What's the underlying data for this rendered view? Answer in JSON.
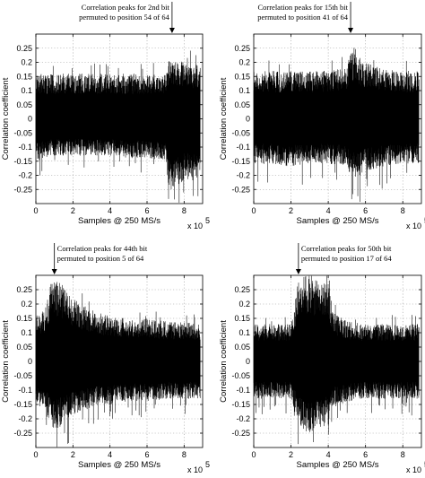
{
  "chart_data": [
    {
      "type": "line",
      "annotation": [
        "Correlation peaks for 2nd bit",
        "permuted to position 54 of 64"
      ],
      "xlabel": "Samples @ 250 MS/s",
      "ylabel": "Correlation coefficient",
      "x_multiplier": "x 10",
      "x_exponent": "5",
      "xlim": [
        0,
        9
      ],
      "ylim": [
        -0.3,
        0.3
      ],
      "xticks": [
        "0",
        "2",
        "4",
        "6",
        "8"
      ],
      "yticks": [
        "0.25",
        "0.2",
        "0.15",
        "0.1",
        "0.05",
        "0",
        "-0.05",
        "-0.1",
        "-0.15",
        "-0.2",
        "-0.25"
      ],
      "grid": true,
      "series": [
        {
          "x": [
            0,
            1,
            2,
            3,
            4,
            5,
            6,
            7,
            7.2,
            7.4,
            8,
            8.9
          ],
          "y": [
            0.16,
            0.16,
            0.16,
            0.16,
            0.16,
            0.16,
            0.16,
            0.16,
            0.22,
            0.22,
            0.2,
            0.19
          ]
        },
        {
          "x": [
            0,
            1,
            2,
            3,
            4,
            5,
            6,
            7,
            7.2,
            7.4,
            8,
            8.9
          ],
          "y": [
            -0.15,
            -0.13,
            -0.13,
            -0.13,
            -0.13,
            -0.14,
            -0.14,
            -0.15,
            -0.26,
            -0.25,
            -0.22,
            -0.22
          ]
        }
      ],
      "peak_x": 7.35
    },
    {
      "type": "line",
      "annotation": [
        "Correlation peaks for 15th bit",
        "permuted to position 41 of 64"
      ],
      "xlabel": "Samples @ 250 MS/s",
      "ylabel": "Correlation coefficient",
      "x_multiplier": "x 10",
      "x_exponent": "5",
      "xlim": [
        0,
        9
      ],
      "ylim": [
        -0.3,
        0.3
      ],
      "xticks": [
        "0",
        "2",
        "4",
        "6",
        "8"
      ],
      "yticks": [
        "0.25",
        "0.2",
        "0.15",
        "0.1",
        "0.05",
        "0",
        "-0.05",
        "-0.1",
        "-0.15",
        "-0.2",
        "-0.25"
      ],
      "grid": true,
      "series": [
        {
          "x": [
            0,
            1,
            2,
            3,
            4,
            5,
            5.2,
            5.6,
            6,
            7,
            8,
            8.9
          ],
          "y": [
            0.17,
            0.17,
            0.17,
            0.17,
            0.17,
            0.18,
            0.25,
            0.22,
            0.2,
            0.18,
            0.17,
            0.17
          ]
        },
        {
          "x": [
            0,
            1,
            2,
            3,
            4,
            5,
            5.2,
            5.6,
            6,
            7,
            8,
            8.9
          ],
          "y": [
            -0.16,
            -0.16,
            -0.17,
            -0.16,
            -0.16,
            -0.17,
            -0.2,
            -0.21,
            -0.19,
            -0.17,
            -0.16,
            -0.16
          ]
        }
      ],
      "peak_x": 5.2
    },
    {
      "type": "line",
      "annotation": [
        "Correlation peaks for 44th bit",
        "permuted to position 5 of 64"
      ],
      "xlabel": "Samples @ 250 MS/s",
      "ylabel": "Correlation coefficient",
      "x_multiplier": "x 10",
      "x_exponent": "5",
      "xlim": [
        0,
        9
      ],
      "ylim": [
        -0.3,
        0.3
      ],
      "xticks": [
        "0",
        "2",
        "4",
        "6",
        "8"
      ],
      "yticks": [
        "0.25",
        "0.2",
        "0.15",
        "0.1",
        "0.05",
        "0",
        "-0.05",
        "-0.1",
        "-0.15",
        "-0.2",
        "-0.25"
      ],
      "grid": true,
      "series": [
        {
          "x": [
            0,
            0.5,
            0.8,
            1,
            1.5,
            2,
            3,
            4,
            5,
            6,
            7,
            8,
            8.9
          ],
          "y": [
            0.16,
            0.18,
            0.27,
            0.28,
            0.27,
            0.22,
            0.18,
            0.16,
            0.15,
            0.15,
            0.14,
            0.14,
            0.13
          ]
        },
        {
          "x": [
            0,
            0.5,
            0.8,
            1,
            1.5,
            2,
            3,
            4,
            5,
            6,
            7,
            8,
            8.9
          ],
          "y": [
            -0.15,
            -0.17,
            -0.23,
            -0.24,
            -0.22,
            -0.19,
            -0.16,
            -0.15,
            -0.14,
            -0.14,
            -0.13,
            -0.13,
            -0.13
          ]
        }
      ],
      "peak_x": 1.0
    },
    {
      "type": "line",
      "annotation": [
        "Correlation peaks for 50th bit",
        "permuted to position 17 of 64"
      ],
      "xlabel": "Samples @ 250 MS/s",
      "ylabel": "Correlation coefficient",
      "x_multiplier": "x 10",
      "x_exponent": "5",
      "xlim": [
        0,
        9
      ],
      "ylim": [
        -0.3,
        0.3
      ],
      "xticks": [
        "0",
        "2",
        "4",
        "6",
        "8"
      ],
      "yticks": [
        "0.25",
        "0.2",
        "0.15",
        "0.1",
        "0.05",
        "0",
        "-0.05",
        "-0.1",
        "-0.15",
        "-0.2",
        "-0.25"
      ],
      "grid": true,
      "series": [
        {
          "x": [
            0,
            1,
            2,
            2.4,
            2.8,
            3.5,
            4,
            4.3,
            5,
            6,
            7,
            8,
            8.9
          ],
          "y": [
            0.13,
            0.13,
            0.13,
            0.29,
            0.3,
            0.28,
            0.27,
            0.17,
            0.14,
            0.13,
            0.13,
            0.13,
            0.13
          ]
        },
        {
          "x": [
            0,
            1,
            2,
            2.4,
            2.8,
            3.5,
            4,
            4.3,
            5,
            6,
            7,
            8,
            8.9
          ],
          "y": [
            -0.13,
            -0.13,
            -0.13,
            -0.22,
            -0.25,
            -0.24,
            -0.22,
            -0.16,
            -0.14,
            -0.13,
            -0.13,
            -0.13,
            -0.13
          ]
        }
      ],
      "peak_x": 2.4
    }
  ]
}
